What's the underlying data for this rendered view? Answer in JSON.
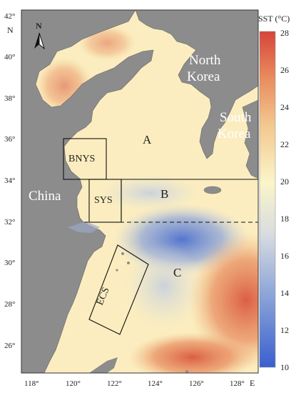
{
  "map": {
    "lat_ticks": [
      "42°",
      "40°",
      "38°",
      "36°",
      "34°",
      "32°",
      "30°",
      "28°",
      "26°"
    ],
    "lon_ticks": [
      "118°",
      "120°",
      "122°",
      "124°",
      "126°",
      "128°"
    ],
    "lat_axis_letter": "N",
    "lon_axis_letter": "E",
    "north_arrow_label": "N",
    "labels": {
      "north_korea": "North Korea",
      "south_korea": "South Korea",
      "china": "China",
      "region_a": "A",
      "region_b": "B",
      "region_c": "C",
      "bnys": "BNYS",
      "sys": "SYS",
      "ecs": "ECS"
    },
    "colors": {
      "land": "#8c8c8c",
      "warm": "#d8483a",
      "mid": "#fbf5c8",
      "cool": "#3a63c8"
    }
  },
  "colorbar": {
    "title": "SST (°C)",
    "ticks": [
      "28",
      "26",
      "24",
      "22",
      "20",
      "18",
      "16",
      "14",
      "12",
      "10"
    ],
    "min": 10,
    "max": 28
  }
}
